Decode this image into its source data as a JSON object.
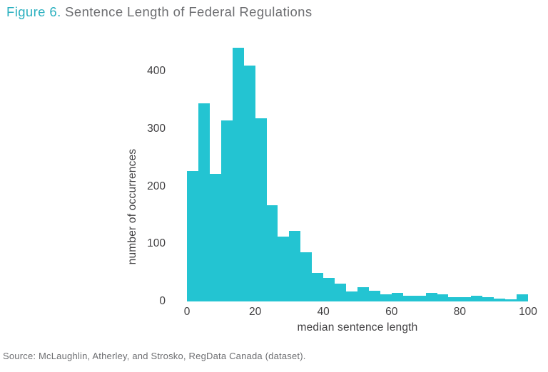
{
  "title": {
    "accent": "Figure 6.",
    "rest": " Sentence Length of Federal Regulations"
  },
  "source": "Source: McLaughlin, Atherley, and Strosko, RegData Canada (dataset).",
  "colors": {
    "accent_teal": "#2bb0bf",
    "bar_teal": "#23c4d2",
    "title_gray": "#6d6e71",
    "axis_text": "#414042",
    "background": "#ffffff"
  },
  "chart_data": {
    "type": "bar",
    "subtype": "histogram",
    "title": "Figure 6. Sentence Length of Federal Regulations",
    "xlabel": "median sentence length",
    "ylabel": "number of occurrences",
    "xlim": [
      0,
      100
    ],
    "ylim": [
      0,
      450
    ],
    "bin_start": 0,
    "bin_width": 3.333,
    "n_bins": 30,
    "grid": false,
    "legend": false,
    "bar_color": "#23c4d2",
    "x_ticks": [
      0,
      20,
      40,
      60,
      80,
      100
    ],
    "y_ticks": [
      0,
      100,
      200,
      300,
      400
    ],
    "values": [
      227,
      345,
      222,
      315,
      441,
      410,
      318,
      167,
      113,
      123,
      85,
      50,
      41,
      31,
      17,
      25,
      18,
      13,
      15,
      10,
      10,
      15,
      12,
      7,
      8,
      10,
      8,
      5,
      4,
      13
    ]
  }
}
